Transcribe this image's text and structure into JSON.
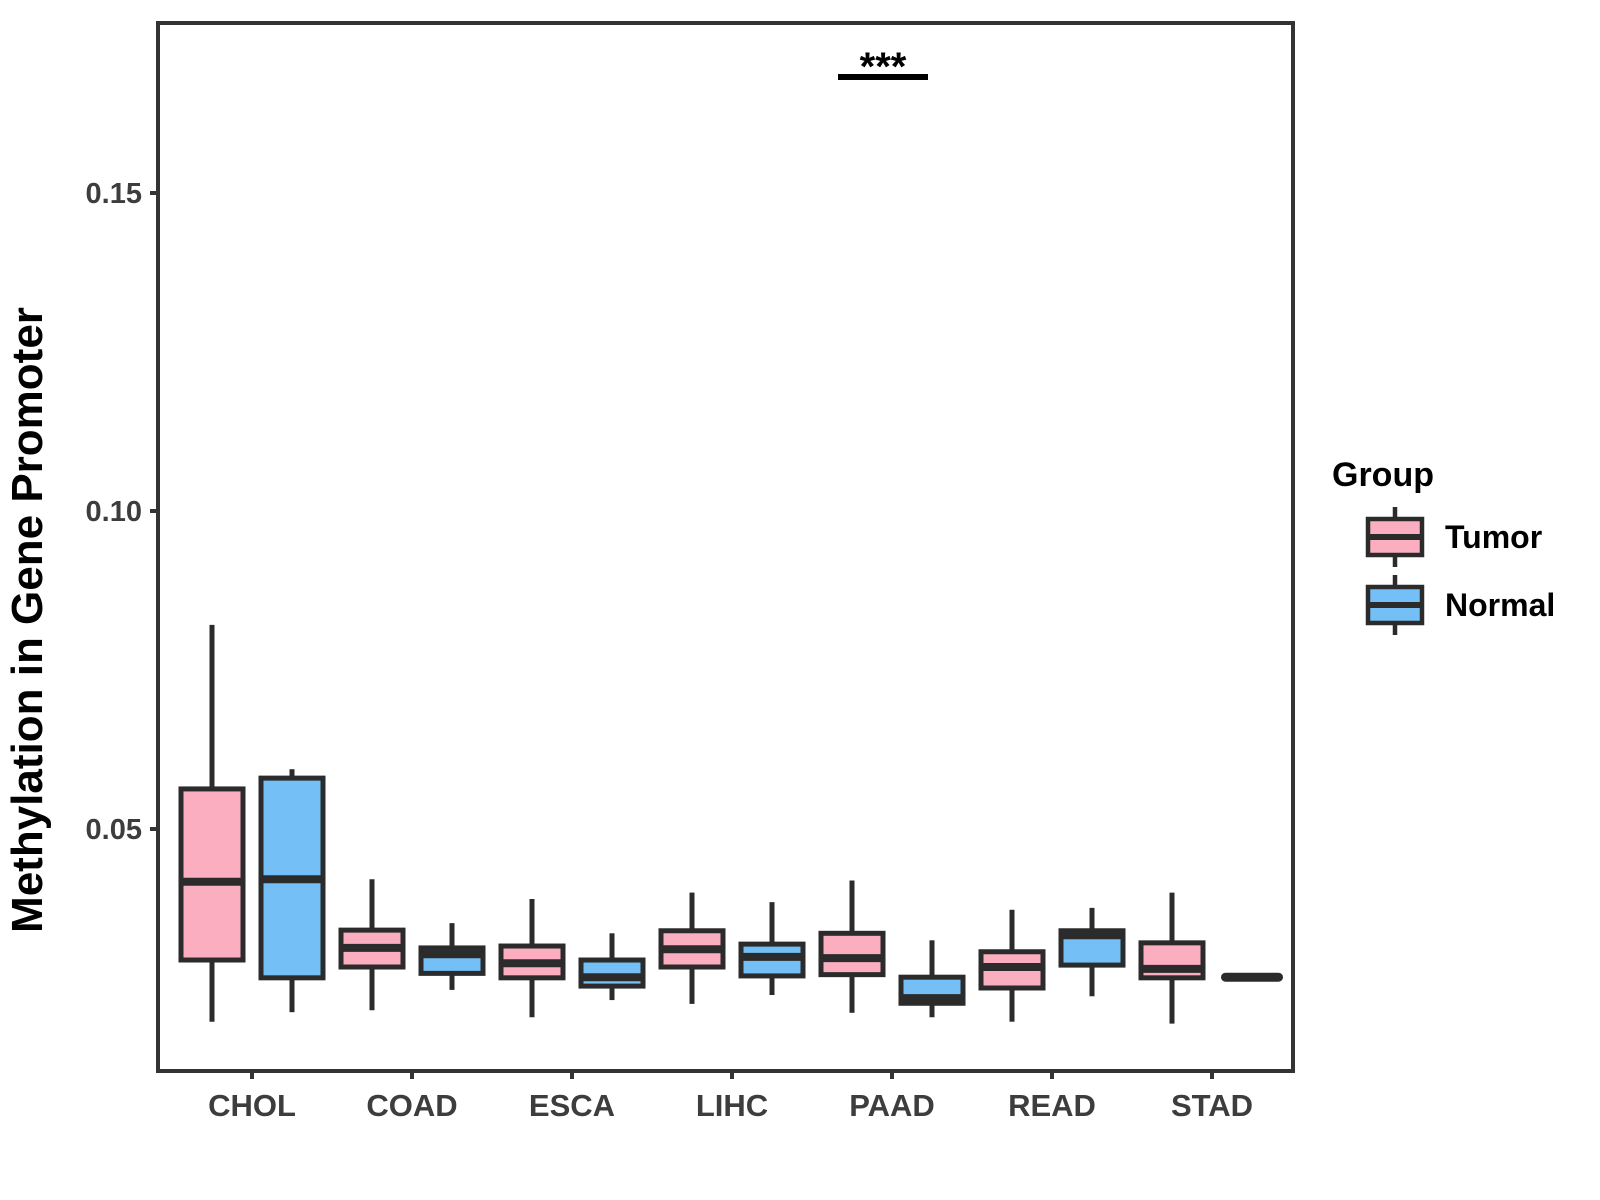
{
  "chart_data": {
    "type": "box",
    "title": "",
    "xlabel": "",
    "ylabel": "Methylation in Gene Promoter",
    "categories": [
      "CHOL",
      "COAD",
      "ESCA",
      "LIHC",
      "PAAD",
      "READ",
      "STAD"
    ],
    "y_tick_labels": [
      "0.05",
      "0.10",
      "0.15"
    ],
    "y_tick_values": [
      0.05,
      0.1,
      0.15
    ],
    "ylim": [
      0.012,
      0.177
    ],
    "grid": "off",
    "legend": {
      "title": "Group",
      "position": "right",
      "items": [
        {
          "label": "Tumor",
          "color": "#FAAEC0"
        },
        {
          "label": "Normal",
          "color": "#74BFF5"
        }
      ]
    },
    "series": [
      {
        "name": "Tumor",
        "color": "#FAAEC0",
        "boxes": [
          {
            "lo": 0.0197,
            "q1": 0.0294,
            "med": 0.0417,
            "q3": 0.0563,
            "hi": 0.0821
          },
          {
            "lo": 0.0215,
            "q1": 0.0283,
            "med": 0.0313,
            "q3": 0.0341,
            "hi": 0.0421
          },
          {
            "lo": 0.0204,
            "q1": 0.0266,
            "med": 0.0289,
            "q3": 0.0316,
            "hi": 0.039
          },
          {
            "lo": 0.0225,
            "q1": 0.0283,
            "med": 0.0311,
            "q3": 0.034,
            "hi": 0.04
          },
          {
            "lo": 0.0211,
            "q1": 0.0271,
            "med": 0.0297,
            "q3": 0.0336,
            "hi": 0.0419
          },
          {
            "lo": 0.0197,
            "q1": 0.025,
            "med": 0.0283,
            "q3": 0.0307,
            "hi": 0.0373
          },
          {
            "lo": 0.0194,
            "q1": 0.0266,
            "med": 0.028,
            "q3": 0.0321,
            "hi": 0.04
          }
        ]
      },
      {
        "name": "Normal",
        "color": "#74BFF5",
        "boxes": [
          {
            "lo": 0.0212,
            "q1": 0.0266,
            "med": 0.0421,
            "q3": 0.058,
            "hi": 0.0594
          },
          {
            "lo": 0.0247,
            "q1": 0.0273,
            "med": 0.0303,
            "q3": 0.0313,
            "hi": 0.0352
          },
          {
            "lo": 0.0231,
            "q1": 0.0253,
            "med": 0.0267,
            "q3": 0.0294,
            "hi": 0.0336
          },
          {
            "lo": 0.0239,
            "q1": 0.0269,
            "med": 0.0299,
            "q3": 0.0319,
            "hi": 0.0385
          },
          {
            "lo": 0.0204,
            "q1": 0.0226,
            "med": 0.0234,
            "q3": 0.0267,
            "hi": 0.0325
          },
          {
            "lo": 0.0237,
            "q1": 0.0286,
            "med": 0.0333,
            "q3": 0.034,
            "hi": 0.0376
          },
          {
            "lo": 0.0267,
            "q1": 0.0267,
            "med": 0.0267,
            "q3": 0.0267,
            "hi": 0.0267
          }
        ]
      }
    ],
    "annotation": {
      "label": "***",
      "category": "PAAD"
    },
    "colors": {
      "box_stroke": "#2b2b2b",
      "axis_text": "#3d3d3d",
      "panel_border": "#333333",
      "annotation": "#000000"
    }
  }
}
